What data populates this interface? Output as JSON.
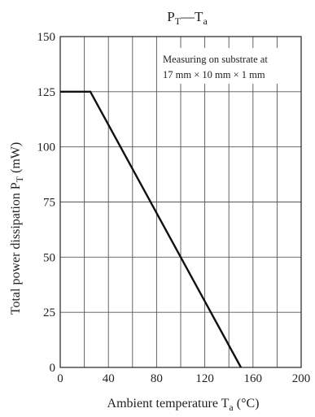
{
  "chart_data": {
    "type": "line",
    "title": {
      "main": "P",
      "main_sub": "T",
      "sep": "—",
      "main2": "T",
      "main2_sub": "a"
    },
    "xlabel": {
      "text": "Ambient temperature  T",
      "sub": "a",
      "unit": "  (°C)"
    },
    "ylabel": {
      "text": "Total power dissipation  P",
      "sub": "T",
      "unit": "  (mW)"
    },
    "xlim": [
      0,
      200
    ],
    "ylim": [
      0,
      150
    ],
    "x_ticks": [
      0,
      40,
      80,
      120,
      160,
      200
    ],
    "x_tick_labels": [
      "0",
      "40",
      "80",
      "120",
      "160",
      "200"
    ],
    "x_grid": [
      0,
      20,
      40,
      60,
      80,
      100,
      120,
      140,
      160,
      180,
      200
    ],
    "y_ticks": [
      0,
      25,
      50,
      75,
      100,
      125,
      150
    ],
    "y_tick_labels": [
      "0",
      "25",
      "50",
      "75",
      "100",
      "125",
      "150"
    ],
    "grid": true,
    "annotation": [
      "Measuring on substrate at",
      "17 mm × 10 mm × 1 mm"
    ],
    "series": [
      {
        "x": [
          0,
          25,
          150
        ],
        "y": [
          125,
          125,
          0
        ]
      }
    ]
  }
}
